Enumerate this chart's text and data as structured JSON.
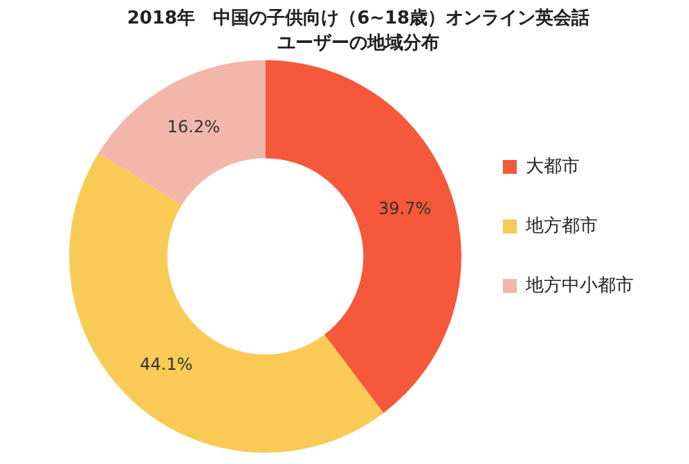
{
  "chart_data": {
    "type": "donut",
    "title": "2018年　中国の子供向け（6~18歳）オンライン英会話",
    "subtitle": "ユーザーの地域分布",
    "categories": [
      "大都市",
      "地方都市",
      "地方中小都市"
    ],
    "values": [
      39.7,
      44.1,
      16.2
    ],
    "colors": [
      "#f5583b",
      "#f9ca55",
      "#f3b6aa"
    ],
    "value_labels": [
      "39.7%",
      "44.1%",
      "16.2%"
    ],
    "legend": "right"
  }
}
